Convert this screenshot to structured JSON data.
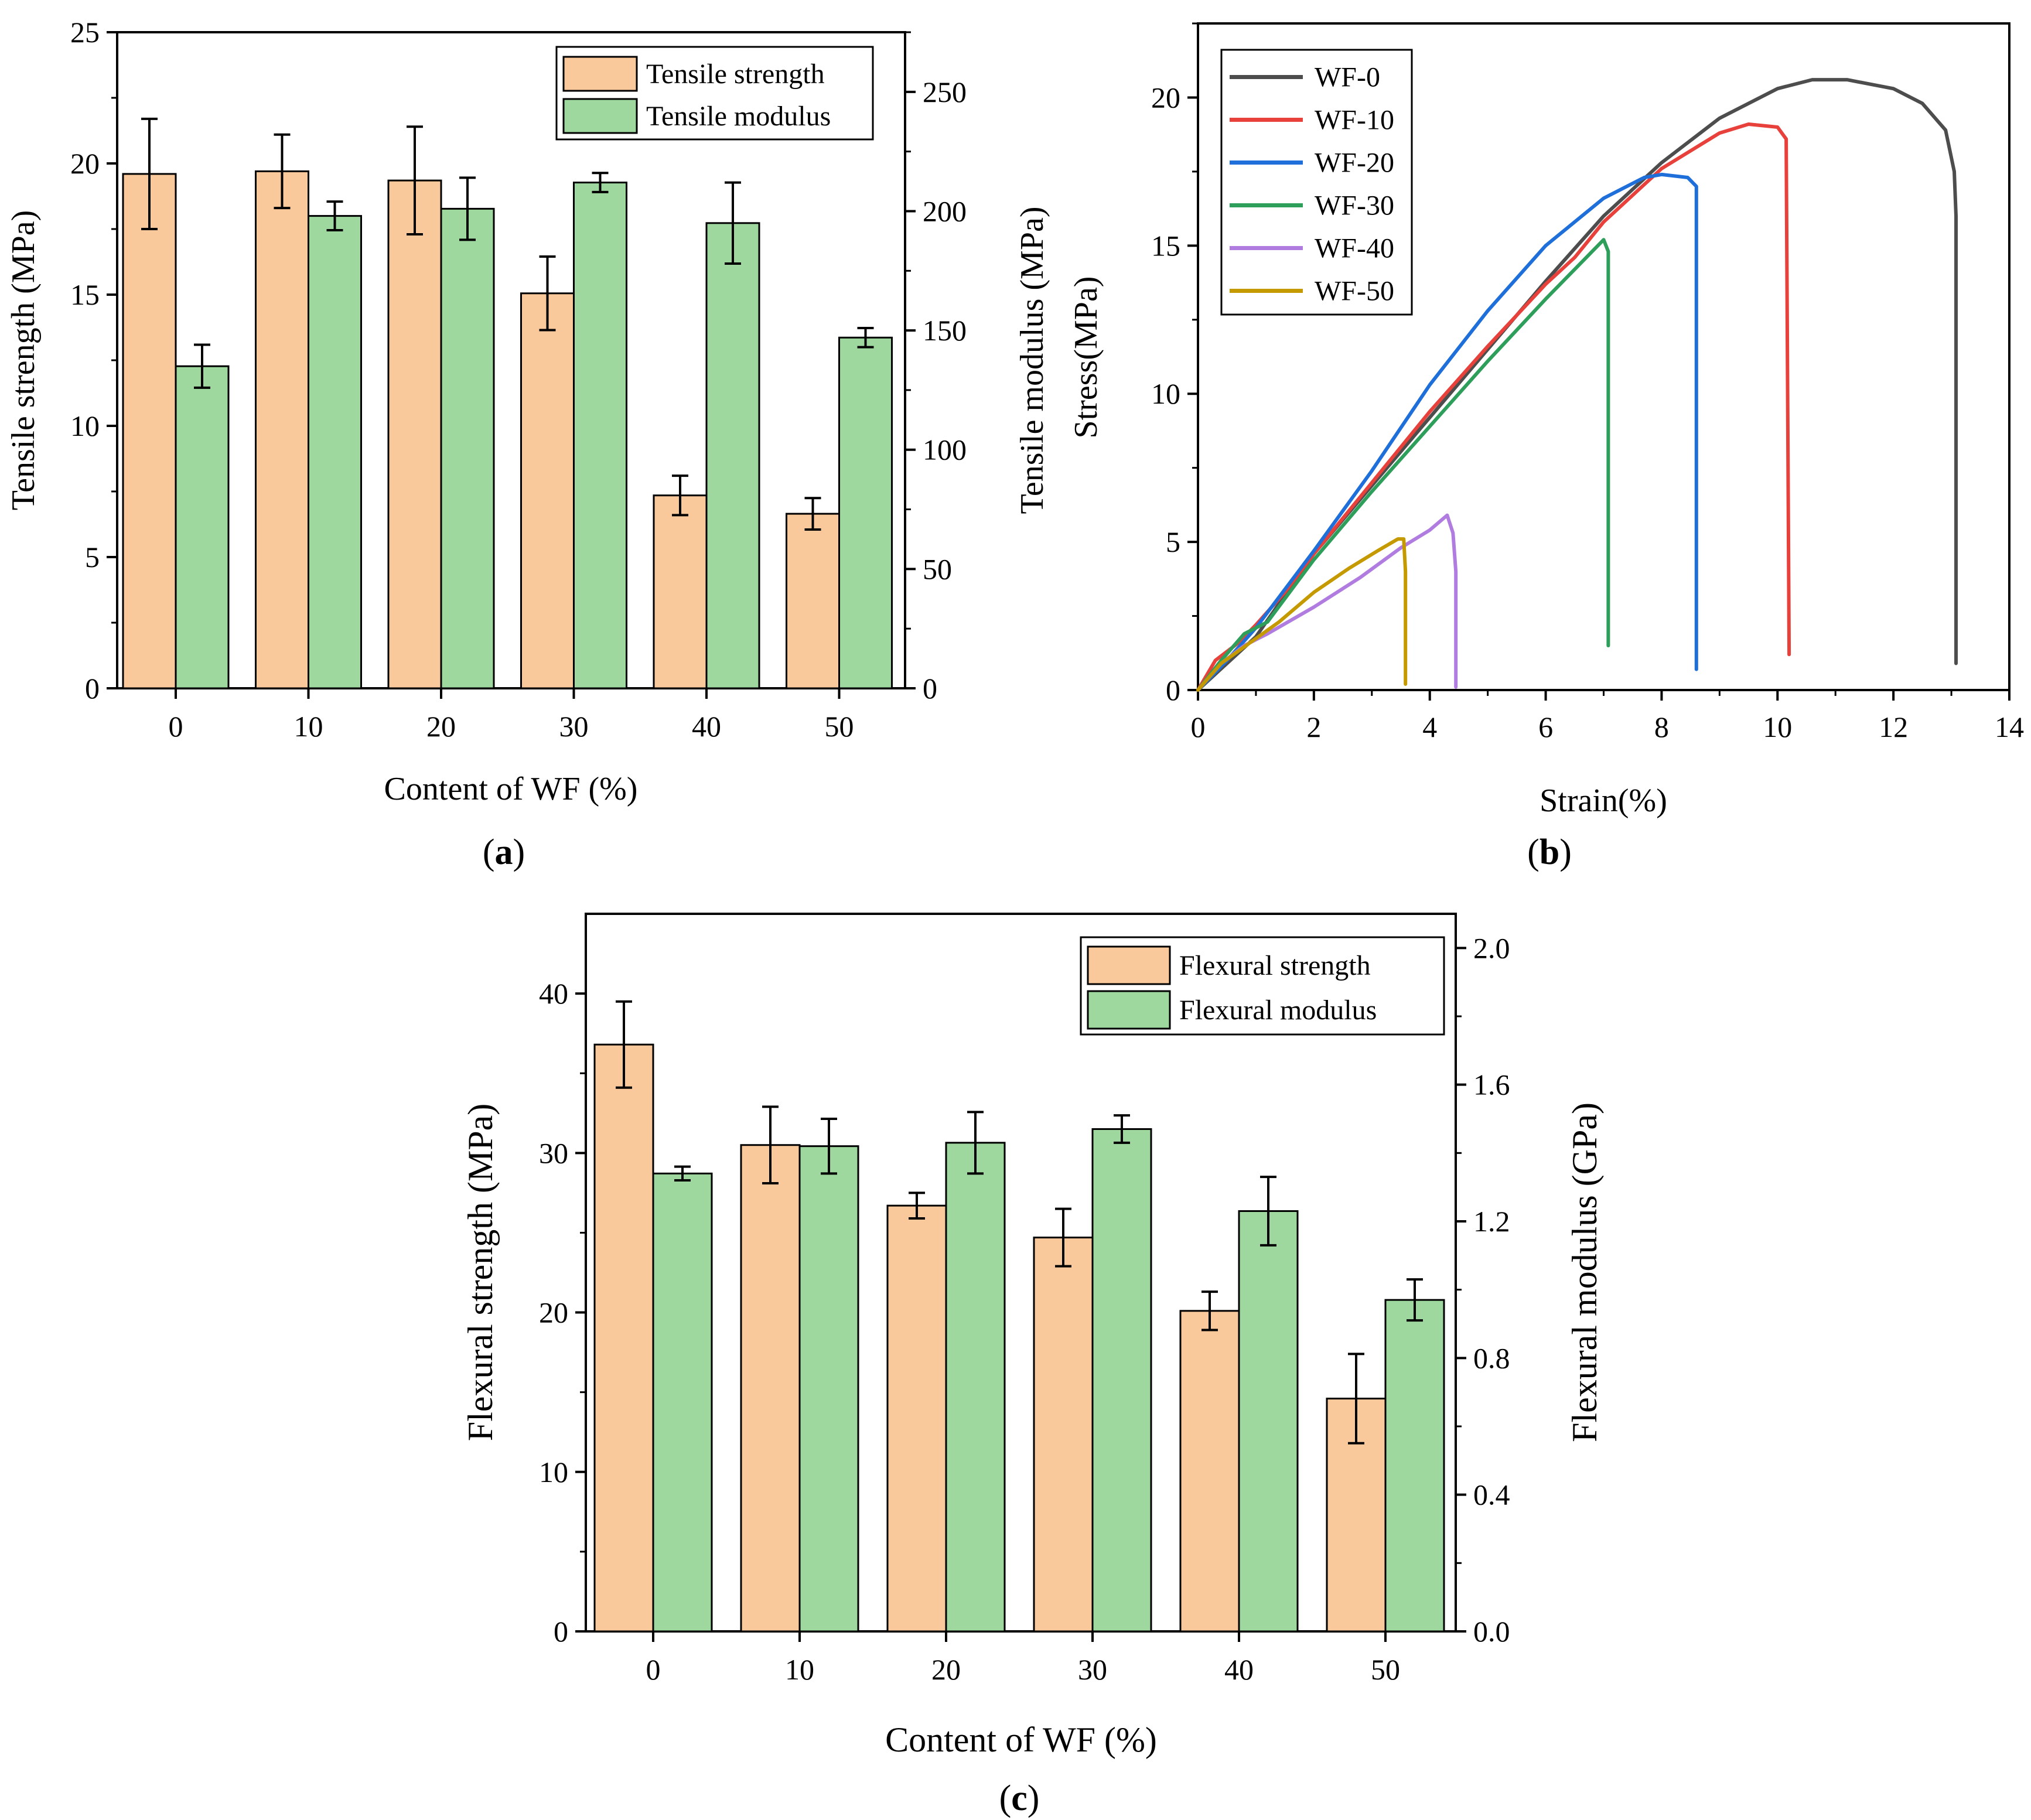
{
  "colors": {
    "strength": "#F9C89B",
    "modulus": "#9FD89F",
    "outline": "#000000"
  },
  "chart_data": [
    {
      "id": "a",
      "type": "bar",
      "panel_label": "a",
      "xlabel": "Content of WF (%)",
      "ylabel_left": "Tensile strength (MPa)",
      "ylabel_right": "Tensile modulus (MPa)",
      "categories": [
        "0",
        "10",
        "20",
        "30",
        "40",
        "50"
      ],
      "ylim_left": [
        0,
        25
      ],
      "ylim_right": [
        0,
        275
      ],
      "yticks_left": [
        0,
        5,
        10,
        15,
        20,
        25
      ],
      "yticks_right": [
        0,
        50,
        100,
        150,
        200,
        250
      ],
      "legend_position": "top-right",
      "series": [
        {
          "name": "Tensile strength",
          "axis": "left",
          "color_key": "strength",
          "values": [
            19.6,
            19.7,
            19.35,
            15.05,
            7.35,
            6.65
          ],
          "errors": [
            2.1,
            1.4,
            2.05,
            1.4,
            0.75,
            0.6
          ]
        },
        {
          "name": "Tensile modulus",
          "axis": "right",
          "color_key": "modulus",
          "values": [
            135,
            198,
            201,
            212,
            195,
            147
          ],
          "errors": [
            9,
            6,
            13,
            4,
            17,
            4
          ]
        }
      ]
    },
    {
      "id": "b",
      "type": "line",
      "panel_label": "b",
      "xlabel": "Strain(%)",
      "ylabel": "Stress(MPa)",
      "xlim": [
        0,
        14
      ],
      "ylim": [
        0,
        22.5
      ],
      "xticks": [
        0,
        2,
        4,
        6,
        8,
        10,
        12,
        14
      ],
      "yticks": [
        0,
        5,
        10,
        15,
        20
      ],
      "legend_position": "top-left",
      "series": [
        {
          "name": "WF-0",
          "color": "#4D4D4D",
          "points": [
            [
              0,
              0
            ],
            [
              0.5,
              0.9
            ],
            [
              1,
              1.8
            ],
            [
              1.5,
              3.2
            ],
            [
              2,
              4.6
            ],
            [
              3,
              6.9
            ],
            [
              4,
              9.2
            ],
            [
              5,
              11.5
            ],
            [
              6,
              13.8
            ],
            [
              7,
              16.0
            ],
            [
              8,
              17.8
            ],
            [
              9,
              19.3
            ],
            [
              10,
              20.3
            ],
            [
              10.6,
              20.6
            ],
            [
              11.2,
              20.6
            ],
            [
              12,
              20.3
            ],
            [
              12.5,
              19.8
            ],
            [
              12.9,
              18.9
            ],
            [
              13.05,
              17.5
            ],
            [
              13.08,
              16.0
            ],
            [
              13.08,
              0.9
            ]
          ]
        },
        {
          "name": "WF-10",
          "color": "#E8403A",
          "points": [
            [
              0,
              0
            ],
            [
              0.3,
              1.0
            ],
            [
              0.7,
              1.6
            ],
            [
              1,
              2.2
            ],
            [
              1.5,
              3.3
            ],
            [
              2,
              4.6
            ],
            [
              3,
              7.0
            ],
            [
              4,
              9.4
            ],
            [
              5,
              11.6
            ],
            [
              6,
              13.7
            ],
            [
              6.5,
              14.6
            ],
            [
              7,
              15.8
            ],
            [
              8,
              17.6
            ],
            [
              9,
              18.8
            ],
            [
              9.5,
              19.1
            ],
            [
              10,
              19.0
            ],
            [
              10.15,
              18.6
            ],
            [
              10.2,
              1.2
            ]
          ]
        },
        {
          "name": "WF-20",
          "color": "#1E6FD9",
          "points": [
            [
              0,
              0
            ],
            [
              0.5,
              1.0
            ],
            [
              1,
              2.1
            ],
            [
              2,
              4.7
            ],
            [
              3,
              7.4
            ],
            [
              4,
              10.3
            ],
            [
              5,
              12.8
            ],
            [
              6,
              15.0
            ],
            [
              7,
              16.6
            ],
            [
              7.7,
              17.3
            ],
            [
              8,
              17.4
            ],
            [
              8.45,
              17.3
            ],
            [
              8.6,
              17.0
            ],
            [
              8.6,
              0.7
            ]
          ]
        },
        {
          "name": "WF-30",
          "color": "#2E9E5B",
          "points": [
            [
              0,
              0
            ],
            [
              0.4,
              1.0
            ],
            [
              0.8,
              1.9
            ],
            [
              1.2,
              2.3
            ],
            [
              2,
              4.4
            ],
            [
              3,
              6.7
            ],
            [
              4,
              8.9
            ],
            [
              5,
              11.1
            ],
            [
              6,
              13.2
            ],
            [
              6.7,
              14.6
            ],
            [
              7,
              15.2
            ],
            [
              7.08,
              14.8
            ],
            [
              7.08,
              1.5
            ]
          ]
        },
        {
          "name": "WF-40",
          "color": "#B07CE0",
          "points": [
            [
              0,
              0
            ],
            [
              0.4,
              0.9
            ],
            [
              0.8,
              1.5
            ],
            [
              1.2,
              1.9
            ],
            [
              2,
              2.8
            ],
            [
              2.8,
              3.8
            ],
            [
              3.5,
              4.8
            ],
            [
              4.0,
              5.4
            ],
            [
              4.3,
              5.9
            ],
            [
              4.4,
              5.3
            ],
            [
              4.45,
              4.0
            ],
            [
              4.45,
              0.1
            ]
          ]
        },
        {
          "name": "WF-50",
          "color": "#C49A00",
          "points": [
            [
              0,
              0
            ],
            [
              0.4,
              0.9
            ],
            [
              0.9,
              1.6
            ],
            [
              1.4,
              2.3
            ],
            [
              2,
              3.3
            ],
            [
              2.6,
              4.1
            ],
            [
              3.1,
              4.7
            ],
            [
              3.45,
              5.1
            ],
            [
              3.55,
              5.1
            ],
            [
              3.58,
              4.0
            ],
            [
              3.58,
              0.2
            ]
          ]
        }
      ]
    },
    {
      "id": "c",
      "type": "bar",
      "panel_label": "c",
      "xlabel": "Content of WF (%)",
      "ylabel_left": "Flexural strength (MPa)",
      "ylabel_right": "Flexural modulus (GPa)",
      "categories": [
        "0",
        "10",
        "20",
        "30",
        "40",
        "50"
      ],
      "ylim_left": [
        0,
        45
      ],
      "ylim_right": [
        0,
        2.1
      ],
      "yticks_left": [
        0,
        10,
        20,
        30,
        40
      ],
      "yticks_right": [
        "0.0",
        "0.4",
        "0.8",
        "1.2",
        "1.6",
        "2.0"
      ],
      "legend_position": "top-right",
      "series": [
        {
          "name": "Flexural strength",
          "axis": "left",
          "color_key": "strength",
          "values": [
            36.8,
            30.5,
            26.7,
            24.7,
            20.1,
            14.6
          ],
          "errors": [
            2.7,
            2.4,
            0.8,
            1.8,
            1.2,
            2.8
          ]
        },
        {
          "name": "Flexural modulus",
          "axis": "right",
          "color_key": "modulus",
          "values": [
            1.34,
            1.42,
            1.43,
            1.47,
            1.23,
            0.97
          ],
          "errors": [
            0.02,
            0.08,
            0.09,
            0.04,
            0.1,
            0.06
          ]
        }
      ]
    }
  ]
}
